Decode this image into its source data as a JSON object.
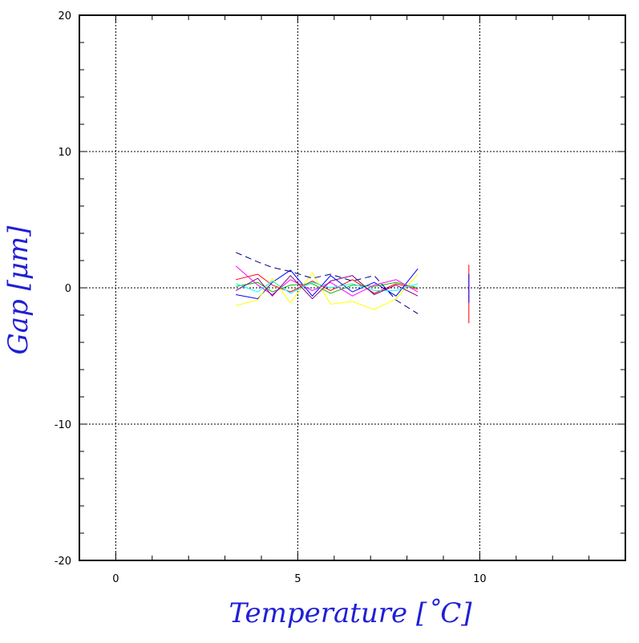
{
  "chart_data": {
    "type": "line",
    "title": "",
    "xlabel": "Temperature [˚C]",
    "ylabel": "Gap [μm]",
    "xlim": [
      -1,
      14
    ],
    "ylim": [
      -20,
      20
    ],
    "x_ticks": [
      0,
      5,
      10
    ],
    "y_ticks": [
      -20,
      -10,
      0,
      10,
      20
    ],
    "x_tick_labels": [
      "0",
      "5",
      "10"
    ],
    "y_tick_labels": [
      "-20",
      "-10",
      "0",
      "10",
      "20"
    ],
    "grid": true,
    "legend": "none",
    "series_colors": [
      "#ff0000",
      "#0000ff",
      "#00c000",
      "#ffff00",
      "#ff00ff",
      "#00ffff",
      "#000080",
      "#800080"
    ],
    "series": [
      {
        "values": [
          [
            3.3,
            0.6
          ],
          [
            3.9,
            1.0
          ],
          [
            4.3,
            0.2
          ],
          [
            4.8,
            -0.3
          ],
          [
            5.4,
            0.5
          ],
          [
            5.9,
            -0.2
          ],
          [
            6.5,
            0.6
          ],
          [
            7.1,
            -0.4
          ],
          [
            7.7,
            0.3
          ],
          [
            8.3,
            -0.1
          ]
        ]
      },
      {
        "values": [
          [
            3.3,
            -0.5
          ],
          [
            3.9,
            -0.8
          ],
          [
            4.3,
            0.4
          ],
          [
            4.8,
            1.3
          ],
          [
            5.4,
            -0.6
          ],
          [
            5.9,
            0.9
          ],
          [
            6.5,
            -0.3
          ],
          [
            7.1,
            0.4
          ],
          [
            7.7,
            -0.6
          ],
          [
            8.3,
            1.4
          ]
        ]
      },
      {
        "values": [
          [
            3.3,
            0.1
          ],
          [
            3.9,
            0.4
          ],
          [
            4.3,
            -0.3
          ],
          [
            4.8,
            0.2
          ],
          [
            5.4,
            0.3
          ],
          [
            5.9,
            -0.4
          ],
          [
            6.5,
            0.2
          ],
          [
            7.1,
            0.1
          ],
          [
            7.7,
            0.4
          ],
          [
            8.3,
            0.0
          ]
        ]
      },
      {
        "values": [
          [
            3.3,
            -1.3
          ],
          [
            3.9,
            -0.9
          ],
          [
            4.3,
            0.7
          ],
          [
            4.8,
            -1.1
          ],
          [
            5.4,
            1.1
          ],
          [
            5.9,
            -1.2
          ],
          [
            6.5,
            -1.0
          ],
          [
            7.1,
            -1.6
          ],
          [
            7.7,
            -0.8
          ],
          [
            8.3,
            1.0
          ]
        ]
      },
      {
        "values": [
          [
            3.3,
            1.6
          ],
          [
            3.9,
            0.2
          ],
          [
            4.3,
            -0.5
          ],
          [
            4.8,
            0.6
          ],
          [
            5.4,
            -0.2
          ],
          [
            5.9,
            0.4
          ],
          [
            6.5,
            -0.6
          ],
          [
            7.1,
            0.2
          ],
          [
            7.7,
            0.6
          ],
          [
            8.3,
            -0.3
          ]
        ]
      },
      {
        "values": [
          [
            3.3,
            0.3
          ],
          [
            3.9,
            -0.3
          ],
          [
            4.3,
            0.5
          ],
          [
            4.8,
            -0.4
          ],
          [
            5.4,
            0.4
          ],
          [
            5.9,
            0.0
          ],
          [
            6.5,
            0.3
          ],
          [
            7.1,
            -0.2
          ],
          [
            7.7,
            -0.2
          ],
          [
            8.3,
            0.3
          ]
        ]
      },
      {
        "values": [
          [
            3.3,
            2.6
          ],
          [
            3.9,
            1.9
          ],
          [
            4.3,
            1.5
          ],
          [
            4.8,
            1.2
          ],
          [
            5.4,
            0.7
          ],
          [
            5.9,
            1.0
          ],
          [
            6.5,
            0.5
          ],
          [
            7.1,
            0.9
          ],
          [
            7.7,
            -0.9
          ],
          [
            8.3,
            -1.9
          ]
        ]
      },
      {
        "values": [
          [
            3.3,
            -0.2
          ],
          [
            3.9,
            0.7
          ],
          [
            4.3,
            -0.6
          ],
          [
            4.8,
            0.9
          ],
          [
            5.4,
            -0.8
          ],
          [
            5.9,
            0.5
          ],
          [
            6.5,
            0.9
          ],
          [
            7.1,
            -0.5
          ],
          [
            7.7,
            0.2
          ],
          [
            8.3,
            -0.6
          ]
        ]
      },
      {
        "values": [
          [
            9.7,
            1.7
          ],
          [
            9.7,
            -2.6
          ]
        ]
      },
      {
        "values": [
          [
            9.7,
            1.0
          ],
          [
            9.7,
            -1.1
          ]
        ]
      }
    ]
  }
}
